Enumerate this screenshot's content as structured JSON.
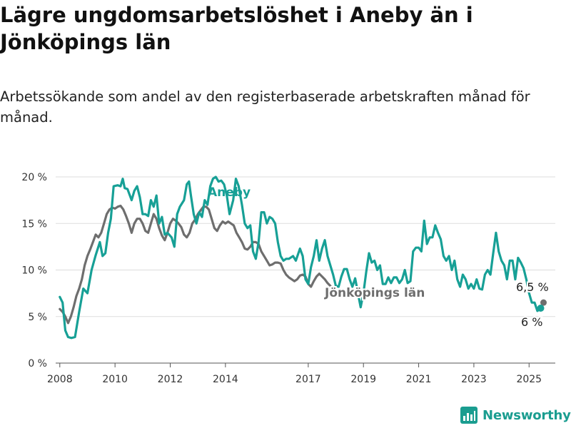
{
  "title": "Lägre ungdomsarbetslöshet i Aneby än i Jönköpings län",
  "subtitle": "Arbetssökande som andel av den registerbaserade arbetskraften månad för månad.",
  "brand": "Newsworthy",
  "colors": {
    "aneby": "#17a096",
    "lan": "#6e6e6e",
    "grid": "#dddddd",
    "brand": "#1a9d90"
  },
  "chart_data": {
    "type": "line",
    "y_unit": "%",
    "ylim": [
      0,
      20
    ],
    "xlim": [
      2007.85,
      2025.95
    ],
    "y_ticks": [
      0,
      5,
      10,
      15,
      20
    ],
    "y_tick_labels": [
      "0 %",
      "5 %",
      "10 %",
      "15 %",
      "20 %"
    ],
    "x_ticks": [
      2008,
      2010,
      2012,
      2014,
      2017,
      2019,
      2021,
      2023,
      2025
    ],
    "x_tick_labels": [
      "2008",
      "2010",
      "2012",
      "2014",
      "2017",
      "2019",
      "2021",
      "2023",
      "2025"
    ],
    "grid": true,
    "end_labels": {
      "aneby": "6 %",
      "lan": "6,5 %"
    },
    "series": [
      {
        "name": "Aneby",
        "key": "aneby",
        "color": "#17a096",
        "points": [
          [
            2008.0,
            7.1
          ],
          [
            2008.1,
            6.5
          ],
          [
            2008.2,
            3.5
          ],
          [
            2008.3,
            2.8
          ],
          [
            2008.42,
            2.7
          ],
          [
            2008.55,
            2.8
          ],
          [
            2008.7,
            5.5
          ],
          [
            2008.85,
            8.0
          ],
          [
            2009.0,
            7.5
          ],
          [
            2009.15,
            10.0
          ],
          [
            2009.3,
            11.6
          ],
          [
            2009.45,
            13.0
          ],
          [
            2009.55,
            11.5
          ],
          [
            2009.65,
            11.8
          ],
          [
            2009.75,
            14.0
          ],
          [
            2009.85,
            15.5
          ],
          [
            2009.95,
            19.0
          ],
          [
            2010.1,
            19.1
          ],
          [
            2010.2,
            19.0
          ],
          [
            2010.28,
            19.8
          ],
          [
            2010.35,
            18.8
          ],
          [
            2010.45,
            18.7
          ],
          [
            2010.6,
            17.5
          ],
          [
            2010.7,
            18.5
          ],
          [
            2010.8,
            19.0
          ],
          [
            2010.9,
            17.8
          ],
          [
            2011.0,
            16.0
          ],
          [
            2011.1,
            16.0
          ],
          [
            2011.2,
            15.8
          ],
          [
            2011.3,
            17.5
          ],
          [
            2011.4,
            16.8
          ],
          [
            2011.5,
            18.0
          ],
          [
            2011.6,
            15.0
          ],
          [
            2011.7,
            15.7
          ],
          [
            2011.8,
            13.8
          ],
          [
            2011.9,
            14.0
          ],
          [
            2012.05,
            13.5
          ],
          [
            2012.15,
            12.5
          ],
          [
            2012.25,
            16.0
          ],
          [
            2012.35,
            16.8
          ],
          [
            2012.5,
            17.5
          ],
          [
            2012.6,
            19.2
          ],
          [
            2012.68,
            19.5
          ],
          [
            2012.75,
            18.0
          ],
          [
            2012.85,
            16.0
          ],
          [
            2012.95,
            15.0
          ],
          [
            2013.05,
            16.2
          ],
          [
            2013.15,
            15.7
          ],
          [
            2013.25,
            17.5
          ],
          [
            2013.35,
            17.0
          ],
          [
            2013.45,
            19.0
          ],
          [
            2013.55,
            19.8
          ],
          [
            2013.65,
            20.0
          ],
          [
            2013.75,
            19.5
          ],
          [
            2013.85,
            19.6
          ],
          [
            2013.95,
            19.2
          ],
          [
            2014.05,
            18.0
          ],
          [
            2014.15,
            16.0
          ],
          [
            2014.28,
            17.5
          ],
          [
            2014.38,
            19.8
          ],
          [
            2014.48,
            19.0
          ],
          [
            2014.6,
            17.0
          ],
          [
            2014.7,
            15.0
          ],
          [
            2014.8,
            14.5
          ],
          [
            2014.9,
            14.8
          ],
          [
            2015.0,
            12.0
          ],
          [
            2015.1,
            11.2
          ],
          [
            2015.2,
            13.0
          ],
          [
            2015.3,
            16.2
          ],
          [
            2015.4,
            16.2
          ],
          [
            2015.5,
            15.0
          ],
          [
            2015.6,
            15.7
          ],
          [
            2015.7,
            15.5
          ],
          [
            2015.8,
            15.0
          ],
          [
            2015.9,
            13.0
          ],
          [
            2016.0,
            11.5
          ],
          [
            2016.1,
            11.0
          ],
          [
            2016.2,
            11.2
          ],
          [
            2016.3,
            11.2
          ],
          [
            2016.45,
            11.5
          ],
          [
            2016.55,
            11.0
          ],
          [
            2016.7,
            12.3
          ],
          [
            2016.8,
            11.5
          ],
          [
            2016.9,
            9.0
          ],
          [
            2017.0,
            8.5
          ],
          [
            2017.1,
            10.3
          ],
          [
            2017.2,
            11.5
          ],
          [
            2017.3,
            13.2
          ],
          [
            2017.4,
            11.0
          ],
          [
            2017.5,
            12.3
          ],
          [
            2017.6,
            13.2
          ],
          [
            2017.7,
            11.5
          ],
          [
            2017.8,
            10.5
          ],
          [
            2017.9,
            9.5
          ],
          [
            2018.0,
            8.3
          ],
          [
            2018.1,
            8.2
          ],
          [
            2018.2,
            9.3
          ],
          [
            2018.3,
            10.1
          ],
          [
            2018.4,
            10.1
          ],
          [
            2018.5,
            9.0
          ],
          [
            2018.6,
            8.2
          ],
          [
            2018.7,
            9.1
          ],
          [
            2018.8,
            7.5
          ],
          [
            2018.9,
            6.0
          ],
          [
            2019.0,
            7.5
          ],
          [
            2019.1,
            9.8
          ],
          [
            2019.2,
            11.8
          ],
          [
            2019.3,
            10.8
          ],
          [
            2019.4,
            11.0
          ],
          [
            2019.5,
            10.0
          ],
          [
            2019.6,
            10.5
          ],
          [
            2019.7,
            8.5
          ],
          [
            2019.8,
            8.5
          ],
          [
            2019.9,
            9.2
          ],
          [
            2020.0,
            8.6
          ],
          [
            2020.1,
            9.2
          ],
          [
            2020.2,
            9.2
          ],
          [
            2020.3,
            8.6
          ],
          [
            2020.4,
            9.0
          ],
          [
            2020.5,
            10.0
          ],
          [
            2020.6,
            8.6
          ],
          [
            2020.7,
            8.8
          ],
          [
            2020.8,
            12.0
          ],
          [
            2020.9,
            12.4
          ],
          [
            2021.0,
            12.4
          ],
          [
            2021.1,
            12.0
          ],
          [
            2021.2,
            15.3
          ],
          [
            2021.3,
            12.8
          ],
          [
            2021.4,
            13.5
          ],
          [
            2021.5,
            13.5
          ],
          [
            2021.6,
            14.8
          ],
          [
            2021.7,
            14.0
          ],
          [
            2021.8,
            13.3
          ],
          [
            2021.9,
            11.5
          ],
          [
            2022.0,
            11.0
          ],
          [
            2022.1,
            11.5
          ],
          [
            2022.2,
            10.0
          ],
          [
            2022.3,
            11.0
          ],
          [
            2022.4,
            9.0
          ],
          [
            2022.5,
            8.2
          ],
          [
            2022.6,
            9.5
          ],
          [
            2022.7,
            9.0
          ],
          [
            2022.8,
            8.0
          ],
          [
            2022.9,
            8.5
          ],
          [
            2023.0,
            8.0
          ],
          [
            2023.1,
            9.0
          ],
          [
            2023.2,
            8.0
          ],
          [
            2023.3,
            7.9
          ],
          [
            2023.4,
            9.5
          ],
          [
            2023.5,
            10.0
          ],
          [
            2023.6,
            9.5
          ],
          [
            2023.7,
            11.8
          ],
          [
            2023.8,
            14.0
          ],
          [
            2023.9,
            12.0
          ],
          [
            2024.0,
            11.0
          ],
          [
            2024.1,
            10.5
          ],
          [
            2024.2,
            9.0
          ],
          [
            2024.3,
            11.0
          ],
          [
            2024.4,
            11.0
          ],
          [
            2024.5,
            9.0
          ],
          [
            2024.6,
            11.3
          ],
          [
            2024.7,
            10.8
          ],
          [
            2024.8,
            10.2
          ],
          [
            2024.9,
            9.0
          ],
          [
            2025.0,
            7.5
          ],
          [
            2025.1,
            6.5
          ],
          [
            2025.2,
            6.5
          ],
          [
            2025.3,
            5.6
          ],
          [
            2025.42,
            5.9
          ]
        ]
      },
      {
        "name": "Jönköpings län",
        "key": "lan",
        "color": "#6e6e6e",
        "points": [
          [
            2008.0,
            5.8
          ],
          [
            2008.1,
            5.5
          ],
          [
            2008.2,
            5.0
          ],
          [
            2008.3,
            4.3
          ],
          [
            2008.4,
            5.0
          ],
          [
            2008.5,
            6.0
          ],
          [
            2008.6,
            7.2
          ],
          [
            2008.7,
            8.0
          ],
          [
            2008.8,
            9.0
          ],
          [
            2008.9,
            10.5
          ],
          [
            2009.0,
            11.5
          ],
          [
            2009.1,
            12.2
          ],
          [
            2009.2,
            13.0
          ],
          [
            2009.3,
            13.8
          ],
          [
            2009.4,
            13.5
          ],
          [
            2009.5,
            14.0
          ],
          [
            2009.6,
            15.0
          ],
          [
            2009.7,
            16.0
          ],
          [
            2009.8,
            16.5
          ],
          [
            2009.9,
            16.7
          ],
          [
            2010.0,
            16.6
          ],
          [
            2010.1,
            16.8
          ],
          [
            2010.2,
            16.9
          ],
          [
            2010.3,
            16.5
          ],
          [
            2010.4,
            15.8
          ],
          [
            2010.5,
            15.0
          ],
          [
            2010.6,
            14.0
          ],
          [
            2010.7,
            15.0
          ],
          [
            2010.8,
            15.5
          ],
          [
            2010.9,
            15.5
          ],
          [
            2011.0,
            15.0
          ],
          [
            2011.1,
            14.2
          ],
          [
            2011.2,
            14.0
          ],
          [
            2011.3,
            15.0
          ],
          [
            2011.4,
            16.0
          ],
          [
            2011.5,
            15.5
          ],
          [
            2011.6,
            14.5
          ],
          [
            2011.7,
            13.7
          ],
          [
            2011.8,
            13.2
          ],
          [
            2011.9,
            14.0
          ],
          [
            2012.0,
            15.0
          ],
          [
            2012.1,
            15.5
          ],
          [
            2012.2,
            15.3
          ],
          [
            2012.3,
            15.0
          ],
          [
            2012.4,
            14.6
          ],
          [
            2012.5,
            13.8
          ],
          [
            2012.6,
            13.5
          ],
          [
            2012.7,
            14.0
          ],
          [
            2012.8,
            15.0
          ],
          [
            2012.9,
            15.4
          ],
          [
            2013.0,
            16.0
          ],
          [
            2013.1,
            16.4
          ],
          [
            2013.2,
            16.8
          ],
          [
            2013.3,
            16.8
          ],
          [
            2013.4,
            16.5
          ],
          [
            2013.5,
            15.5
          ],
          [
            2013.6,
            14.5
          ],
          [
            2013.7,
            14.2
          ],
          [
            2013.8,
            14.8
          ],
          [
            2013.9,
            15.2
          ],
          [
            2014.0,
            15.0
          ],
          [
            2014.1,
            15.2
          ],
          [
            2014.2,
            15.0
          ],
          [
            2014.3,
            14.8
          ],
          [
            2014.4,
            14.0
          ],
          [
            2014.5,
            13.5
          ],
          [
            2014.6,
            13.0
          ],
          [
            2014.7,
            12.3
          ],
          [
            2014.8,
            12.2
          ],
          [
            2014.9,
            12.5
          ],
          [
            2015.0,
            13.0
          ],
          [
            2015.1,
            13.0
          ],
          [
            2015.2,
            12.8
          ],
          [
            2015.3,
            12.0
          ],
          [
            2015.4,
            11.5
          ],
          [
            2015.5,
            11.0
          ],
          [
            2015.6,
            10.5
          ],
          [
            2015.7,
            10.6
          ],
          [
            2015.8,
            10.8
          ],
          [
            2015.9,
            10.8
          ],
          [
            2016.0,
            10.7
          ],
          [
            2016.1,
            10.0
          ],
          [
            2016.2,
            9.5
          ],
          [
            2016.3,
            9.2
          ],
          [
            2016.4,
            9.0
          ],
          [
            2016.5,
            8.8
          ],
          [
            2016.6,
            9.0
          ],
          [
            2016.7,
            9.4
          ],
          [
            2016.8,
            9.5
          ],
          [
            2016.9,
            9.3
          ],
          [
            2017.0,
            8.5
          ],
          [
            2017.1,
            8.2
          ],
          [
            2017.2,
            8.8
          ],
          [
            2017.3,
            9.3
          ],
          [
            2017.4,
            9.6
          ],
          [
            2017.5,
            9.3
          ],
          [
            2017.6,
            9.0
          ],
          [
            2017.7,
            8.6
          ],
          [
            2017.8,
            8.3
          ]
        ]
      }
    ]
  }
}
